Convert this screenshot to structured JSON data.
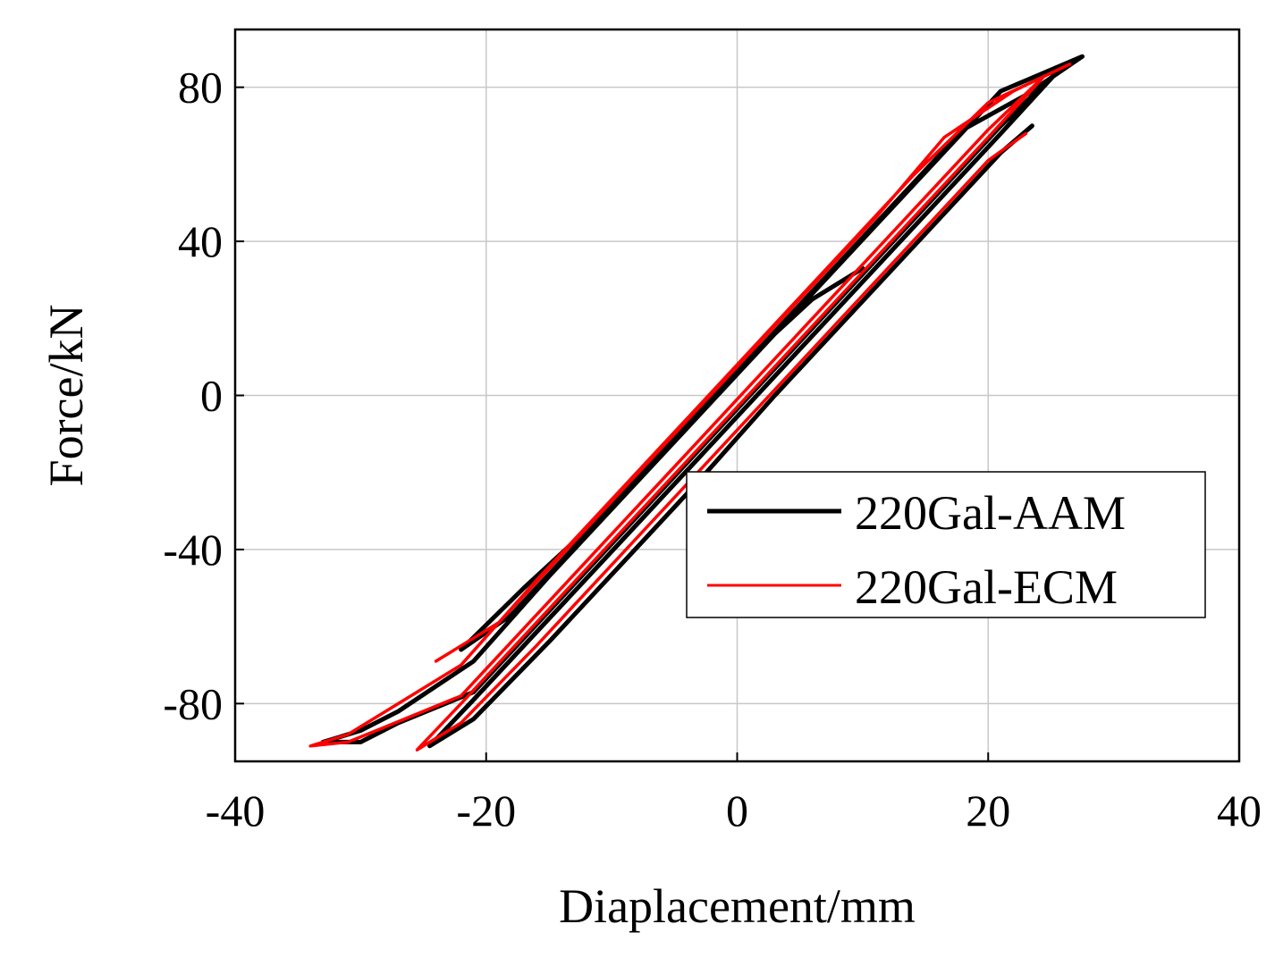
{
  "chart_data": {
    "type": "line",
    "title": "",
    "xlabel": "Diaplacement/mm",
    "ylabel": "Force/kN",
    "xlim": [
      -40,
      40
    ],
    "ylim": [
      -95,
      95
    ],
    "xticks": [
      -40,
      -20,
      0,
      20,
      40
    ],
    "yticks": [
      -80,
      -40,
      0,
      40,
      80
    ],
    "xtick_labels": [
      "-40",
      "-20",
      "0",
      "20",
      "40"
    ],
    "ytick_labels": [
      "-80",
      "-40",
      "0",
      "40",
      "80"
    ],
    "grid": true,
    "legend_position": "center-right",
    "series": [
      {
        "name": "220Gal-AAM",
        "color": "#000000",
        "x": [
          23.5,
          21,
          15,
          9,
          3,
          -3,
          -9,
          -15,
          -21,
          -24.5,
          -21,
          -15,
          -9,
          -3,
          3,
          9,
          15,
          21,
          25.5,
          21,
          15,
          9,
          3,
          -3,
          -9,
          -15,
          -21,
          -27,
          -30,
          -33,
          -30,
          -27,
          -21,
          -15,
          -9,
          -3,
          3,
          9,
          15,
          21,
          27.5,
          23,
          18,
          12,
          6,
          0,
          -6,
          -12,
          -18,
          -22,
          -17,
          -12,
          -6,
          0,
          6,
          10
        ],
        "y": [
          70,
          63,
          42,
          21,
          0,
          -22,
          -43,
          -64,
          -84,
          -91,
          -79,
          -58,
          -37,
          -16,
          5,
          26,
          47,
          68,
          84,
          70,
          49,
          28,
          7,
          -14,
          -35,
          -56,
          -77,
          -85,
          -90,
          -90,
          -87,
          -82,
          -69,
          -47,
          -26,
          -5,
          16,
          37,
          58,
          79,
          88,
          78,
          69,
          48,
          27,
          6,
          -15,
          -36,
          -57,
          -66,
          -50,
          -35,
          -14,
          7,
          25,
          33
        ]
      },
      {
        "name": "220Gal-ECM",
        "color": "#ff0000",
        "x": [
          23,
          20,
          14,
          8,
          2,
          -4,
          -10,
          -16,
          -22,
          -25.5,
          -22,
          -16,
          -10,
          -4,
          2,
          8,
          14,
          20,
          24.5,
          20,
          14,
          8,
          2,
          -4,
          -10,
          -16,
          -22,
          -28,
          -31,
          -34,
          -31,
          -28,
          -22,
          -16,
          -10,
          -4,
          2,
          8,
          14,
          20,
          26.5,
          22,
          16.5,
          11,
          5,
          -1,
          -7,
          -13,
          -19,
          -24
        ],
        "y": [
          68,
          61,
          40,
          19,
          -2,
          -23,
          -44,
          -65,
          -85,
          -92,
          -80,
          -59,
          -38,
          -17,
          4,
          25,
          46,
          67,
          83,
          69,
          48,
          27,
          6,
          -15,
          -36,
          -57,
          -78,
          -86,
          -90,
          -91,
          -88,
          -82,
          -70,
          -48,
          -27,
          -6,
          15,
          36,
          57,
          76,
          86,
          79,
          67,
          46,
          25,
          4,
          -17,
          -38,
          -59,
          -69
        ]
      }
    ]
  }
}
